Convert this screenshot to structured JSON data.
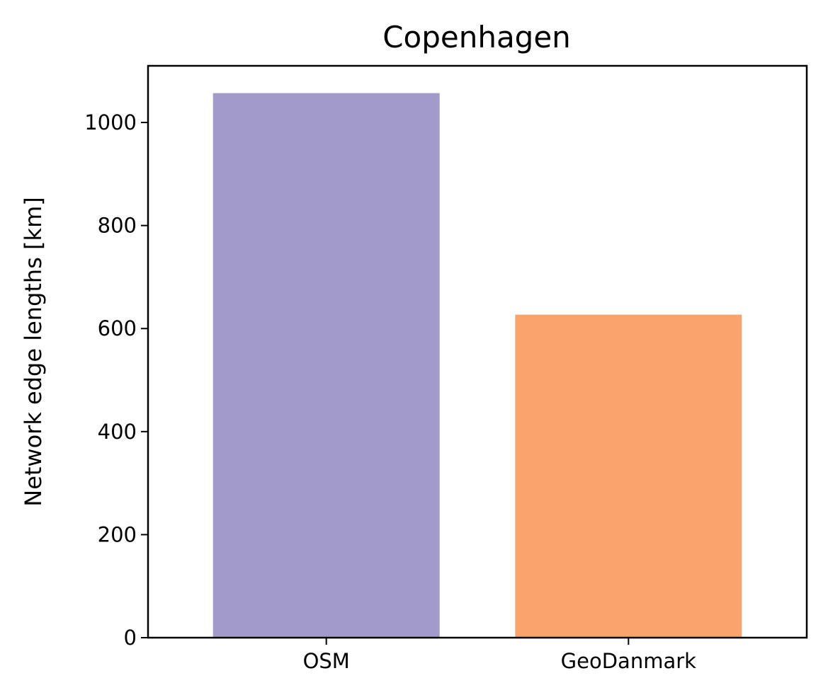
{
  "chart_data": {
    "type": "bar",
    "title": "Copenhagen",
    "xlabel": "",
    "ylabel": "Network edge lengths [km]",
    "categories": [
      "OSM",
      "GeoDanmark"
    ],
    "values": [
      1057,
      627
    ],
    "colors": [
      "#a29ac9",
      "#f8a46b"
    ],
    "ylim": [
      0,
      1110
    ],
    "yticks": [
      0,
      200,
      400,
      600,
      800,
      1000
    ],
    "grid": false,
    "legend": "none"
  }
}
